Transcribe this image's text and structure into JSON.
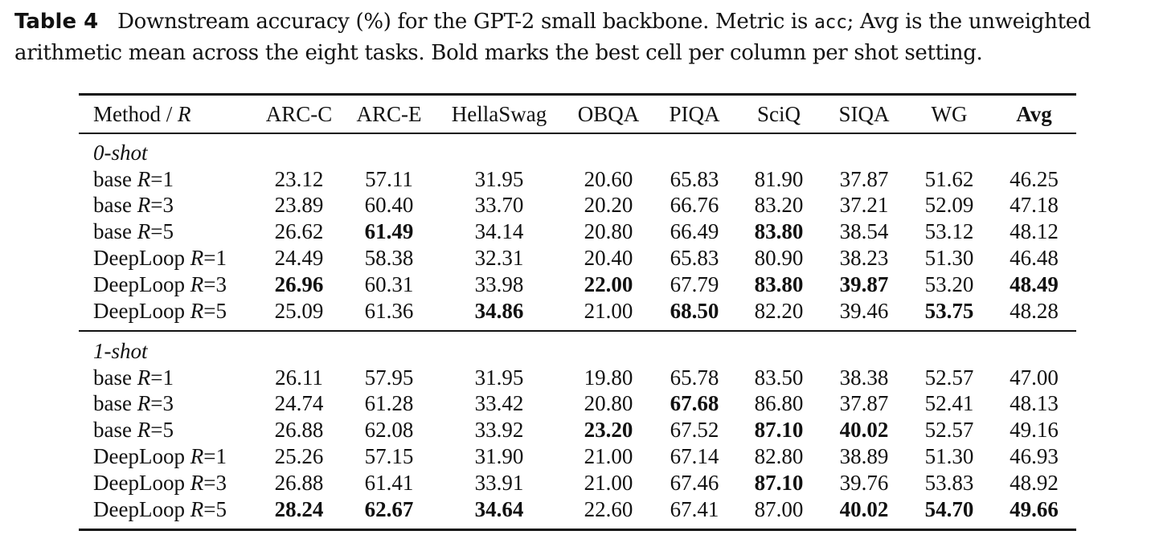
{
  "caption": {
    "label": "Table 4",
    "text_before": "Downstream accuracy (%) for the GPT-2 small backbone. Metric is ",
    "metric": "acc",
    "text_after": "; Avg is the unweighted arithmetic mean across the eight tasks. Bold marks the best cell per column per shot setting."
  },
  "header": {
    "method": "Method / ",
    "method_var": "R",
    "columns": [
      "ARC-C",
      "ARC-E",
      "HellaSwag",
      "OBQA",
      "PIQA",
      "SciQ",
      "SIQA",
      "WG",
      "Avg"
    ]
  },
  "groups": [
    {
      "title": "0-shot",
      "rows": [
        {
          "method": "base",
          "r": "1",
          "values": [
            "23.12",
            "57.11",
            "31.95",
            "20.60",
            "65.83",
            "81.90",
            "37.87",
            "51.62",
            "46.25"
          ],
          "bold": [
            false,
            false,
            false,
            false,
            false,
            false,
            false,
            false,
            false
          ]
        },
        {
          "method": "base",
          "r": "3",
          "values": [
            "23.89",
            "60.40",
            "33.70",
            "20.20",
            "66.76",
            "83.20",
            "37.21",
            "52.09",
            "47.18"
          ],
          "bold": [
            false,
            false,
            false,
            false,
            false,
            false,
            false,
            false,
            false
          ]
        },
        {
          "method": "base",
          "r": "5",
          "values": [
            "26.62",
            "61.49",
            "34.14",
            "20.80",
            "66.49",
            "83.80",
            "38.54",
            "53.12",
            "48.12"
          ],
          "bold": [
            false,
            true,
            false,
            false,
            false,
            true,
            false,
            false,
            false
          ]
        },
        {
          "method": "DeepLoop",
          "r": "1",
          "values": [
            "24.49",
            "58.38",
            "32.31",
            "20.40",
            "65.83",
            "80.90",
            "38.23",
            "51.30",
            "46.48"
          ],
          "bold": [
            false,
            false,
            false,
            false,
            false,
            false,
            false,
            false,
            false
          ]
        },
        {
          "method": "DeepLoop",
          "r": "3",
          "values": [
            "26.96",
            "60.31",
            "33.98",
            "22.00",
            "67.79",
            "83.80",
            "39.87",
            "53.20",
            "48.49"
          ],
          "bold": [
            true,
            false,
            false,
            true,
            false,
            true,
            true,
            false,
            true
          ]
        },
        {
          "method": "DeepLoop",
          "r": "5",
          "values": [
            "25.09",
            "61.36",
            "34.86",
            "21.00",
            "68.50",
            "82.20",
            "39.46",
            "53.75",
            "48.28"
          ],
          "bold": [
            false,
            false,
            true,
            false,
            true,
            false,
            false,
            true,
            false
          ]
        }
      ]
    },
    {
      "title": "1-shot",
      "rows": [
        {
          "method": "base",
          "r": "1",
          "values": [
            "26.11",
            "57.95",
            "31.95",
            "19.80",
            "65.78",
            "83.50",
            "38.38",
            "52.57",
            "47.00"
          ],
          "bold": [
            false,
            false,
            false,
            false,
            false,
            false,
            false,
            false,
            false
          ]
        },
        {
          "method": "base",
          "r": "3",
          "values": [
            "24.74",
            "61.28",
            "33.42",
            "20.80",
            "67.68",
            "86.80",
            "37.87",
            "52.41",
            "48.13"
          ],
          "bold": [
            false,
            false,
            false,
            false,
            true,
            false,
            false,
            false,
            false
          ]
        },
        {
          "method": "base",
          "r": "5",
          "values": [
            "26.88",
            "62.08",
            "33.92",
            "23.20",
            "67.52",
            "87.10",
            "40.02",
            "52.57",
            "49.16"
          ],
          "bold": [
            false,
            false,
            false,
            true,
            false,
            true,
            true,
            false,
            false
          ]
        },
        {
          "method": "DeepLoop",
          "r": "1",
          "values": [
            "25.26",
            "57.15",
            "31.90",
            "21.00",
            "67.14",
            "82.80",
            "38.89",
            "51.30",
            "46.93"
          ],
          "bold": [
            false,
            false,
            false,
            false,
            false,
            false,
            false,
            false,
            false
          ]
        },
        {
          "method": "DeepLoop",
          "r": "3",
          "values": [
            "26.88",
            "61.41",
            "33.91",
            "21.00",
            "67.46",
            "87.10",
            "39.76",
            "53.83",
            "48.92"
          ],
          "bold": [
            false,
            false,
            false,
            false,
            false,
            true,
            false,
            false,
            false
          ]
        },
        {
          "method": "DeepLoop",
          "r": "5",
          "values": [
            "28.24",
            "62.67",
            "34.64",
            "22.60",
            "67.41",
            "87.00",
            "40.02",
            "54.70",
            "49.66"
          ],
          "bold": [
            true,
            true,
            true,
            false,
            false,
            false,
            true,
            true,
            true
          ]
        }
      ]
    }
  ]
}
